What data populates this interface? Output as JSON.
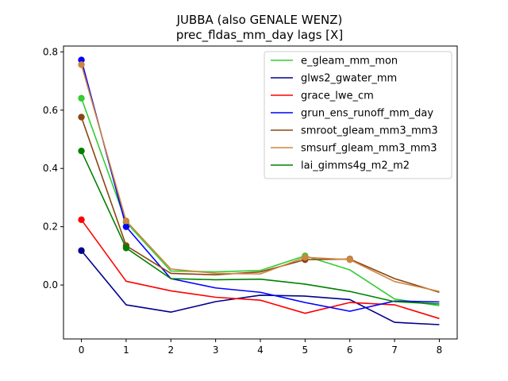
{
  "chart_data": {
    "type": "line",
    "title": "JUBBA (also GENALE WENZ)",
    "subtitle": "prec_fldas_mm_day lags [X]",
    "xlabel": "",
    "ylabel": "",
    "x": [
      0,
      1,
      2,
      3,
      4,
      5,
      6,
      7,
      8
    ],
    "xlim": [
      -0.4,
      8.4
    ],
    "ylim": [
      -0.185,
      0.82
    ],
    "yticks": [
      0.0,
      0.2,
      0.4,
      0.6,
      0.8
    ],
    "ytick_labels": [
      "0.0",
      "0.2",
      "0.4",
      "0.6",
      "0.8"
    ],
    "grid": false,
    "legend_position": "upper-right",
    "series": [
      {
        "name": "e_gleam_mm_mon",
        "color": "#32cd32",
        "values": [
          0.641,
          0.215,
          0.048,
          0.045,
          0.05,
          0.1,
          0.052,
          -0.048,
          -0.071
        ],
        "markers": [
          0,
          1,
          5
        ]
      },
      {
        "name": "glws2_gwater_mm",
        "color": "#00008b",
        "values": [
          0.118,
          -0.068,
          -0.093,
          -0.057,
          -0.035,
          -0.038,
          -0.05,
          -0.128,
          -0.136
        ],
        "markers": [
          0
        ]
      },
      {
        "name": "grace_lwe_cm",
        "color": "#ff0000",
        "values": [
          0.224,
          0.013,
          -0.02,
          -0.042,
          -0.052,
          -0.097,
          -0.06,
          -0.068,
          -0.115
        ],
        "markers": [
          0
        ]
      },
      {
        "name": "grun_ens_runoff_mm_day",
        "color": "#0000ff",
        "values": [
          0.772,
          0.2,
          0.022,
          -0.01,
          -0.025,
          -0.06,
          -0.09,
          -0.055,
          -0.058
        ],
        "markers": [
          0,
          1
        ]
      },
      {
        "name": "smroot_gleam_mm3_mm3",
        "color": "#8b4513",
        "values": [
          0.576,
          0.135,
          0.04,
          0.035,
          0.045,
          0.087,
          0.089,
          0.022,
          -0.025
        ],
        "markers": [
          0,
          1,
          5,
          6
        ]
      },
      {
        "name": "smsurf_gleam_mm3_mm3",
        "color": "#cd853f",
        "values": [
          0.756,
          0.22,
          0.055,
          0.04,
          0.038,
          0.095,
          0.087,
          0.012,
          -0.022
        ],
        "markers": [
          0,
          1,
          5,
          6
        ]
      },
      {
        "name": "lai_gimms4g_m2_m2",
        "color": "#008000",
        "values": [
          0.46,
          0.127,
          0.022,
          0.018,
          0.02,
          0.003,
          -0.022,
          -0.057,
          -0.065
        ],
        "markers": [
          0,
          1
        ]
      }
    ]
  }
}
